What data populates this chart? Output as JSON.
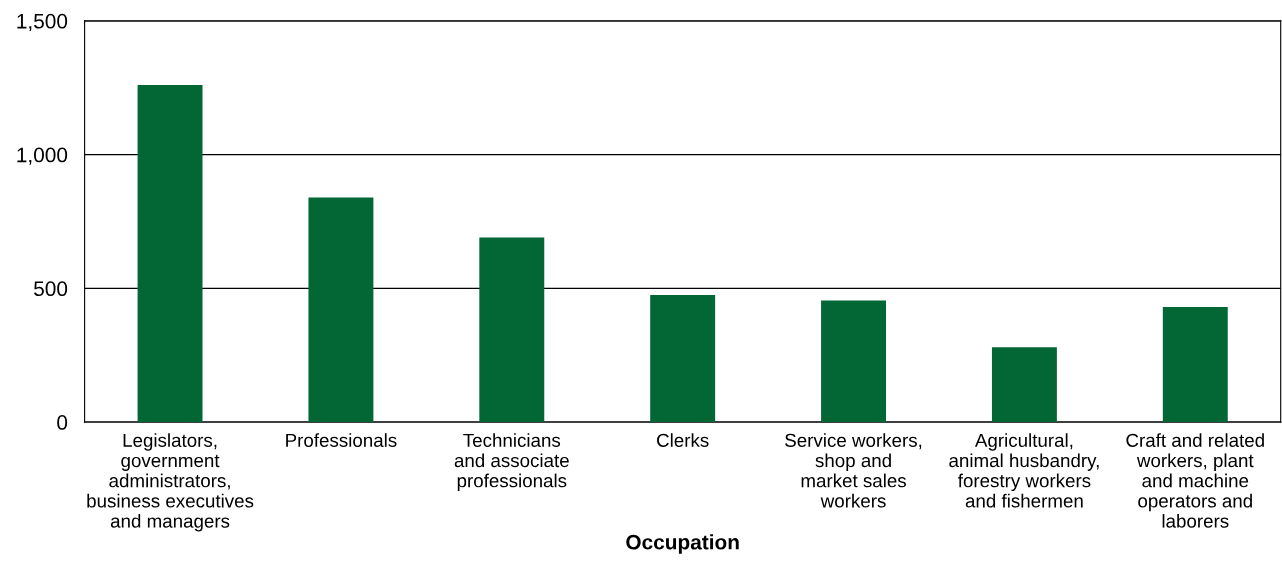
{
  "chart_data": {
    "type": "bar",
    "xlabel": "Occupation",
    "categories": [
      "Legislators,\ngovernment\nadministrators,\nbusiness executives\nand managers",
      "Professionals",
      "Technicians\nand associate\nprofessionals",
      "Clerks",
      "Service workers,\nshop and\nmarket sales\nworkers",
      "Agricultural,\nanimal husbandry,\nforestry workers\nand fishermen",
      "Craft and related\nworkers, plant\nand machine\noperators and\nlaborers"
    ],
    "values": [
      1260,
      840,
      690,
      475,
      455,
      280,
      430
    ],
    "color": "#036635",
    "ylim": [
      0,
      1500
    ],
    "yticks": [
      0,
      {
        "value": 500,
        "label": "500"
      },
      {
        "value": 1000,
        "label": "1,000"
      },
      {
        "value": 1500,
        "label": "1,500"
      }
    ],
    "grid": "y"
  }
}
